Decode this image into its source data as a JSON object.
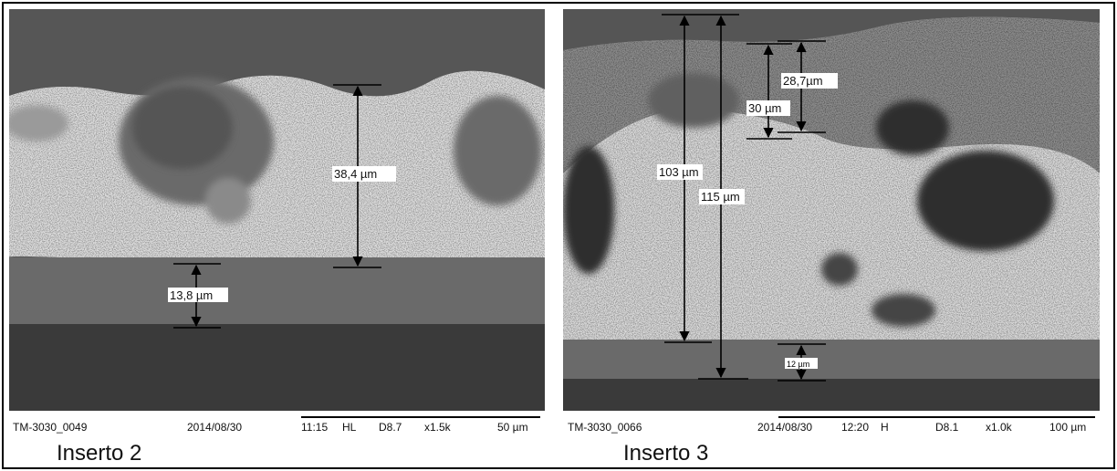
{
  "panels": [
    {
      "caption": "Inserto 2",
      "footer": {
        "id": "TM-3030_0049",
        "date": "2014/08/30",
        "time": "11:15",
        "mode": "HL",
        "distance": "D8.7",
        "magnification": "x1.5k",
        "scale": "50 µm"
      },
      "measurements": [
        "38,4 µm",
        "13,8 µm"
      ]
    },
    {
      "caption": "Inserto 3",
      "footer": {
        "id": "TM-3030_0066",
        "date": "2014/08/30",
        "time": "12:20",
        "mode": "H",
        "distance": "D8.1",
        "magnification": "x1.0k",
        "scale": "100 µm"
      },
      "measurements": [
        "103 µm",
        "115 µm",
        "28,7µm",
        "30 µm",
        "12 µm"
      ]
    }
  ]
}
